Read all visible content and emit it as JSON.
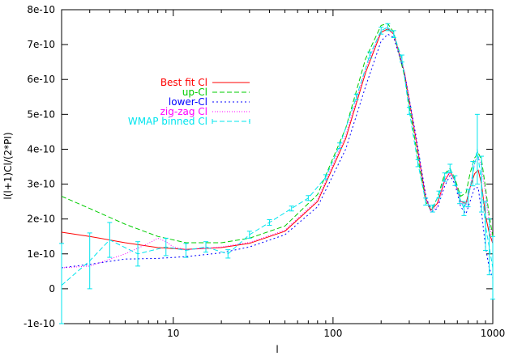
{
  "chart_data": {
    "type": "line",
    "xlabel": "l",
    "ylabel": "l(l+1)Cl/(2*PI)",
    "xscale": "log",
    "xlim": [
      2,
      1000
    ],
    "ylim": [
      -1e-10,
      8e-10
    ],
    "grid": false,
    "legend_position": "upper-left-center",
    "x_ticks": [
      {
        "value": 10,
        "label": "10"
      },
      {
        "value": 100,
        "label": "100"
      },
      {
        "value": 1000,
        "label": "1000"
      }
    ],
    "y_ticks": [
      {
        "value": -1e-10,
        "label": "-1e-10"
      },
      {
        "value": 0,
        "label": "0"
      },
      {
        "value": 1e-10,
        "label": "1e-10"
      },
      {
        "value": 2e-10,
        "label": "2e-10"
      },
      {
        "value": 3e-10,
        "label": "3e-10"
      },
      {
        "value": 4e-10,
        "label": "4e-10"
      },
      {
        "value": 5e-10,
        "label": "5e-10"
      },
      {
        "value": 6e-10,
        "label": "6e-10"
      },
      {
        "value": 7e-10,
        "label": "7e-10"
      },
      {
        "value": 8e-10,
        "label": "8e-10"
      }
    ],
    "series": [
      {
        "name": "Best fit Cl",
        "color": "#ff0000",
        "dash": "",
        "x": [
          2,
          3,
          5,
          8,
          12,
          20,
          30,
          50,
          80,
          120,
          160,
          200,
          220,
          240,
          280,
          330,
          380,
          410,
          450,
          500,
          540,
          580,
          630,
          680,
          720,
          770,
          810,
          850,
          900,
          950,
          1000
        ],
        "y": [
          1.62e-10,
          1.5e-10,
          1.32e-10,
          1.18e-10,
          1.13e-10,
          1.18e-10,
          1.3e-10,
          1.65e-10,
          2.5e-10,
          4.3e-10,
          6.2e-10,
          7.35e-10,
          7.45e-10,
          7.3e-10,
          6.2e-10,
          4.3e-10,
          2.6e-10,
          2.25e-10,
          2.45e-10,
          3.1e-10,
          3.35e-10,
          3.1e-10,
          2.5e-10,
          2.45e-10,
          2.9e-10,
          3.3e-10,
          3.4e-10,
          3e-10,
          2.1e-10,
          1.6e-10,
          1.3e-10
        ]
      },
      {
        "name": "up-Cl",
        "color": "#00cc00",
        "dash": "6,3",
        "x": [
          2,
          3,
          5,
          8,
          12,
          20,
          30,
          50,
          80,
          120,
          160,
          200,
          220,
          240,
          280,
          330,
          380,
          410,
          450,
          500,
          540,
          580,
          630,
          680,
          720,
          770,
          810,
          850,
          900,
          950,
          1000
        ],
        "y": [
          2.65e-10,
          2.3e-10,
          1.85e-10,
          1.5e-10,
          1.32e-10,
          1.32e-10,
          1.45e-10,
          1.8e-10,
          2.7e-10,
          4.6e-10,
          6.6e-10,
          7.55e-10,
          7.6e-10,
          7.35e-10,
          6.1e-10,
          4.1e-10,
          2.5e-10,
          2.25e-10,
          2.6e-10,
          3.3e-10,
          3.45e-10,
          3.15e-10,
          2.65e-10,
          2.75e-10,
          3.3e-10,
          3.75e-10,
          3.9e-10,
          3.7e-10,
          2.9e-10,
          2.1e-10,
          1.5e-10
        ]
      },
      {
        "name": "lower-Cl",
        "color": "#0000ff",
        "dash": "2,3",
        "x": [
          2,
          3,
          5,
          8,
          12,
          20,
          30,
          50,
          80,
          120,
          160,
          200,
          220,
          240,
          280,
          330,
          380,
          410,
          450,
          500,
          540,
          580,
          630,
          680,
          720,
          770,
          810,
          850,
          900,
          950,
          1000
        ],
        "y": [
          6e-11,
          7e-11,
          8.5e-11,
          8.7e-11,
          9.2e-11,
          1.03e-10,
          1.2e-10,
          1.55e-10,
          2.35e-10,
          4e-10,
          5.8e-10,
          7.1e-10,
          7.3e-10,
          7.2e-10,
          6.2e-10,
          4.4e-10,
          2.7e-10,
          2.2e-10,
          2.3e-10,
          2.95e-10,
          3.25e-10,
          3e-10,
          2.35e-10,
          2.15e-10,
          2.5e-10,
          2.9e-10,
          2.9e-10,
          2.2e-10,
          1.2e-10,
          6e-11,
          3e-11
        ]
      },
      {
        "name": "zig-zag  Cl",
        "color": "#ff00ff",
        "dash": "1,2",
        "x": [
          2,
          3,
          5,
          7,
          8,
          9,
          10,
          12,
          15,
          20,
          30,
          50,
          80,
          120,
          160,
          200,
          220,
          240,
          280,
          330,
          380,
          410,
          450,
          500,
          540,
          580,
          630,
          680,
          720,
          770,
          810,
          850,
          900,
          950,
          1000
        ],
        "y": [
          6e-11,
          6.5e-11,
          1e-10,
          1.3e-10,
          1.45e-10,
          1.35e-10,
          1.2e-10,
          1.12e-10,
          1.15e-10,
          1.2e-10,
          1.33e-10,
          1.68e-10,
          2.55e-10,
          4.4e-10,
          6.3e-10,
          7.4e-10,
          7.5e-10,
          7.3e-10,
          6.2e-10,
          4.3e-10,
          2.6e-10,
          2.2e-10,
          2.35e-10,
          3.1e-10,
          3.35e-10,
          3.1e-10,
          2.5e-10,
          2.35e-10,
          2.9e-10,
          3.6e-10,
          3.8e-10,
          3.5e-10,
          2.7e-10,
          1.9e-10,
          1.3e-10
        ]
      },
      {
        "name": "WMAP binned Cl",
        "color": "#00e5ee",
        "dash": "6,3",
        "errorbars": true,
        "x": [
          2,
          3,
          4,
          6,
          9,
          12,
          16,
          22,
          30,
          40,
          55,
          70,
          90,
          110,
          140,
          170,
          200,
          220,
          240,
          270,
          300,
          340,
          380,
          420,
          460,
          500,
          540,
          580,
          620,
          660,
          700,
          750,
          800,
          850,
          900,
          950,
          1000
        ],
        "y": [
          1e-11,
          8e-11,
          1.4e-10,
          1e-10,
          1.2e-10,
          1.1e-10,
          1.2e-10,
          1e-10,
          1.55e-10,
          1.9e-10,
          2.3e-10,
          2.6e-10,
          3.2e-10,
          4.1e-10,
          5.5e-10,
          6.7e-10,
          7.4e-10,
          7.5e-10,
          7.3e-10,
          6.6e-10,
          5.1e-10,
          3.6e-10,
          2.5e-10,
          2.3e-10,
          2.7e-10,
          3.2e-10,
          3.45e-10,
          3.1e-10,
          2.6e-10,
          2.3e-10,
          2.6e-10,
          3.3e-10,
          4e-10,
          3e-10,
          1.8e-10,
          1.2e-10,
          6e-11
        ],
        "err": [
          1.2e-10,
          8e-11,
          5e-11,
          3.5e-11,
          2.5e-11,
          2e-11,
          1.5e-11,
          1.2e-11,
          1e-11,
          8e-12,
          7e-12,
          7e-12,
          7e-12,
          8e-12,
          8e-12,
          9e-12,
          1e-11,
          1e-11,
          1e-11,
          1e-11,
          1e-11,
          1e-11,
          1e-11,
          1e-11,
          1e-11,
          1.2e-11,
          1.2e-11,
          1.4e-11,
          1.6e-11,
          2e-11,
          2.5e-11,
          3.5e-11,
          1e-10,
          8e-11,
          7e-11,
          8e-11,
          9e-11
        ]
      }
    ]
  }
}
